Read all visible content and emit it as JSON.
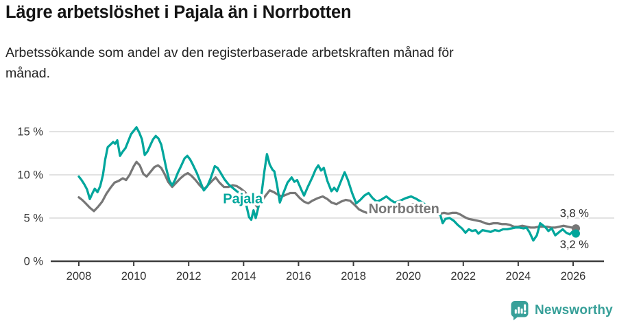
{
  "header": {
    "title": "Lägre arbetslöshet i Pajala än i Norrbotten",
    "subtitle_lines": [
      "Arbetssökande som andel av den registerbaserade arbetskraften månad för",
      "månad."
    ]
  },
  "footer": {
    "brand": "Newsworthy",
    "brand_color": "#38a099"
  },
  "colors": {
    "pajala": "#00a69c",
    "norrbotten": "#777777",
    "grid": "#d9d9d9",
    "axis": "#3c3c3c",
    "tick_text": "#333333"
  },
  "chart_data": {
    "type": "line",
    "title": "Lägre arbetslöshet i Pajala än i Norrbotten",
    "subtitle": "Arbetssökande som andel av den registerbaserade arbetskraften månad för månad.",
    "unit": "%",
    "grid": true,
    "legend_position": "inline-labels",
    "x_axis": {
      "range": [
        2007.9,
        2027.0
      ],
      "ticks": [
        2008,
        2010,
        2012,
        2014,
        2016,
        2018,
        2020,
        2022,
        2024,
        2026
      ],
      "tick_labels": [
        "2008",
        "2010",
        "2012",
        "2014",
        "2016",
        "2018",
        "2020",
        "2022",
        "2024",
        "2026"
      ]
    },
    "y_axis": {
      "range": [
        0,
        16.5
      ],
      "ticks": [
        0,
        5,
        10,
        15
      ],
      "tick_labels": [
        "0 %",
        "5 %",
        "10 %",
        "15 %"
      ]
    },
    "series": [
      {
        "name": "Norrbotten",
        "color": "#777777",
        "end_value": 3.8,
        "end_label": "3,8 %",
        "points": [
          [
            2008.0,
            7.4
          ],
          [
            2008.12,
            7.1
          ],
          [
            2008.25,
            6.7
          ],
          [
            2008.4,
            6.2
          ],
          [
            2008.55,
            5.8
          ],
          [
            2008.7,
            6.3
          ],
          [
            2008.85,
            6.9
          ],
          [
            2009.0,
            7.8
          ],
          [
            2009.15,
            8.5
          ],
          [
            2009.3,
            9.1
          ],
          [
            2009.45,
            9.3
          ],
          [
            2009.6,
            9.6
          ],
          [
            2009.72,
            9.4
          ],
          [
            2009.85,
            10.0
          ],
          [
            2010.0,
            11.0
          ],
          [
            2010.1,
            11.5
          ],
          [
            2010.22,
            11.1
          ],
          [
            2010.35,
            10.1
          ],
          [
            2010.47,
            9.8
          ],
          [
            2010.6,
            10.3
          ],
          [
            2010.75,
            10.9
          ],
          [
            2010.88,
            11.1
          ],
          [
            2011.0,
            10.8
          ],
          [
            2011.12,
            10.1
          ],
          [
            2011.25,
            9.2
          ],
          [
            2011.4,
            8.6
          ],
          [
            2011.55,
            9.1
          ],
          [
            2011.7,
            9.6
          ],
          [
            2011.85,
            10.0
          ],
          [
            2011.97,
            10.2
          ],
          [
            2012.1,
            9.9
          ],
          [
            2012.25,
            9.4
          ],
          [
            2012.4,
            8.8
          ],
          [
            2012.55,
            8.3
          ],
          [
            2012.7,
            8.8
          ],
          [
            2012.85,
            9.3
          ],
          [
            2012.98,
            9.7
          ],
          [
            2013.12,
            9.1
          ],
          [
            2013.28,
            8.6
          ],
          [
            2013.45,
            8.6
          ],
          [
            2013.6,
            8.8
          ],
          [
            2013.75,
            8.7
          ],
          [
            2013.9,
            8.4
          ],
          [
            2014.05,
            8.0
          ],
          [
            2014.2,
            7.4
          ],
          [
            2014.35,
            6.8
          ],
          [
            2014.5,
            6.3
          ],
          [
            2014.65,
            6.9
          ],
          [
            2014.8,
            7.6
          ],
          [
            2014.95,
            8.2
          ],
          [
            2015.1,
            8.0
          ],
          [
            2015.25,
            7.7
          ],
          [
            2015.4,
            7.5
          ],
          [
            2015.55,
            7.7
          ],
          [
            2015.7,
            7.9
          ],
          [
            2015.88,
            7.9
          ],
          [
            2016.05,
            7.3
          ],
          [
            2016.2,
            6.9
          ],
          [
            2016.35,
            6.7
          ],
          [
            2016.5,
            7.0
          ],
          [
            2016.7,
            7.3
          ],
          [
            2016.88,
            7.5
          ],
          [
            2017.05,
            7.2
          ],
          [
            2017.2,
            6.8
          ],
          [
            2017.38,
            6.6
          ],
          [
            2017.55,
            6.9
          ],
          [
            2017.72,
            7.1
          ],
          [
            2017.88,
            7.0
          ],
          [
            2018.05,
            6.5
          ],
          [
            2018.2,
            6.0
          ],
          [
            2018.4,
            5.7
          ],
          [
            2018.6,
            5.5
          ],
          [
            2018.8,
            5.7
          ],
          [
            2019.0,
            5.9
          ],
          [
            2019.2,
            6.1
          ],
          [
            2019.4,
            6.0
          ],
          [
            2019.6,
            6.1
          ],
          [
            2019.8,
            6.3
          ],
          [
            2020.0,
            6.5
          ],
          [
            2020.2,
            6.6
          ],
          [
            2020.4,
            6.4
          ],
          [
            2020.6,
            6.2
          ],
          [
            2020.8,
            5.9
          ],
          [
            2021.0,
            5.7
          ],
          [
            2021.17,
            5.5
          ],
          [
            2021.3,
            5.6
          ],
          [
            2021.45,
            5.5
          ],
          [
            2021.6,
            5.6
          ],
          [
            2021.75,
            5.6
          ],
          [
            2021.9,
            5.4
          ],
          [
            2022.05,
            5.1
          ],
          [
            2022.2,
            4.9
          ],
          [
            2022.35,
            4.8
          ],
          [
            2022.5,
            4.7
          ],
          [
            2022.65,
            4.6
          ],
          [
            2022.8,
            4.4
          ],
          [
            2022.95,
            4.3
          ],
          [
            2023.1,
            4.4
          ],
          [
            2023.25,
            4.4
          ],
          [
            2023.4,
            4.3
          ],
          [
            2023.55,
            4.3
          ],
          [
            2023.7,
            4.2
          ],
          [
            2023.85,
            4.0
          ],
          [
            2024.0,
            4.0
          ],
          [
            2024.15,
            4.1
          ],
          [
            2024.3,
            4.0
          ],
          [
            2024.45,
            3.9
          ],
          [
            2024.6,
            3.9
          ],
          [
            2024.75,
            4.0
          ],
          [
            2024.9,
            4.0
          ],
          [
            2025.05,
            4.0
          ],
          [
            2025.2,
            3.9
          ],
          [
            2025.35,
            3.9
          ],
          [
            2025.5,
            4.0
          ],
          [
            2025.65,
            4.1
          ],
          [
            2025.8,
            4.0
          ],
          [
            2025.95,
            3.9
          ],
          [
            2026.1,
            3.8
          ]
        ]
      },
      {
        "name": "Pajala",
        "color": "#00a69c",
        "end_value": 3.2,
        "end_label": "3,2 %",
        "points": [
          [
            2008.0,
            9.8
          ],
          [
            2008.1,
            9.4
          ],
          [
            2008.2,
            8.9
          ],
          [
            2008.3,
            8.3
          ],
          [
            2008.4,
            7.2
          ],
          [
            2008.5,
            7.9
          ],
          [
            2008.58,
            8.4
          ],
          [
            2008.68,
            8.0
          ],
          [
            2008.78,
            8.7
          ],
          [
            2008.88,
            10.0
          ],
          [
            2008.96,
            11.8
          ],
          [
            2009.05,
            13.2
          ],
          [
            2009.15,
            13.5
          ],
          [
            2009.25,
            13.8
          ],
          [
            2009.32,
            13.6
          ],
          [
            2009.4,
            14.0
          ],
          [
            2009.5,
            12.2
          ],
          [
            2009.6,
            12.7
          ],
          [
            2009.7,
            13.1
          ],
          [
            2009.8,
            13.9
          ],
          [
            2009.9,
            14.7
          ],
          [
            2010.0,
            15.1
          ],
          [
            2010.1,
            15.5
          ],
          [
            2010.2,
            14.9
          ],
          [
            2010.3,
            14.1
          ],
          [
            2010.4,
            12.3
          ],
          [
            2010.5,
            12.7
          ],
          [
            2010.6,
            13.4
          ],
          [
            2010.7,
            14.1
          ],
          [
            2010.8,
            14.5
          ],
          [
            2010.9,
            14.2
          ],
          [
            2011.0,
            13.5
          ],
          [
            2011.1,
            12.0
          ],
          [
            2011.2,
            10.5
          ],
          [
            2011.3,
            9.3
          ],
          [
            2011.4,
            8.8
          ],
          [
            2011.5,
            9.4
          ],
          [
            2011.6,
            10.2
          ],
          [
            2011.72,
            11.0
          ],
          [
            2011.85,
            11.9
          ],
          [
            2011.95,
            12.2
          ],
          [
            2012.05,
            11.8
          ],
          [
            2012.15,
            11.2
          ],
          [
            2012.3,
            10.2
          ],
          [
            2012.45,
            9.0
          ],
          [
            2012.55,
            8.2
          ],
          [
            2012.68,
            8.7
          ],
          [
            2012.8,
            9.6
          ],
          [
            2012.95,
            11.0
          ],
          [
            2013.05,
            10.8
          ],
          [
            2013.15,
            10.3
          ],
          [
            2013.3,
            9.5
          ],
          [
            2013.45,
            8.9
          ],
          [
            2013.6,
            8.5
          ],
          [
            2013.75,
            8.1
          ],
          [
            2013.9,
            7.8
          ],
          [
            2014.0,
            7.5
          ],
          [
            2014.1,
            6.5
          ],
          [
            2014.2,
            5.1
          ],
          [
            2014.28,
            4.8
          ],
          [
            2014.36,
            5.9
          ],
          [
            2014.44,
            5.0
          ],
          [
            2014.54,
            6.3
          ],
          [
            2014.66,
            8.0
          ],
          [
            2014.76,
            10.5
          ],
          [
            2014.85,
            12.4
          ],
          [
            2014.95,
            11.2
          ],
          [
            2015.05,
            10.6
          ],
          [
            2015.12,
            10.4
          ],
          [
            2015.22,
            8.8
          ],
          [
            2015.32,
            6.8
          ],
          [
            2015.45,
            7.9
          ],
          [
            2015.6,
            9.1
          ],
          [
            2015.75,
            9.7
          ],
          [
            2015.85,
            9.2
          ],
          [
            2015.95,
            9.4
          ],
          [
            2016.1,
            8.3
          ],
          [
            2016.2,
            7.6
          ],
          [
            2016.35,
            8.7
          ],
          [
            2016.5,
            9.7
          ],
          [
            2016.62,
            10.6
          ],
          [
            2016.72,
            11.1
          ],
          [
            2016.82,
            10.5
          ],
          [
            2016.92,
            10.8
          ],
          [
            2017.05,
            9.3
          ],
          [
            2017.2,
            8.1
          ],
          [
            2017.3,
            8.5
          ],
          [
            2017.4,
            8.1
          ],
          [
            2017.55,
            9.3
          ],
          [
            2017.68,
            10.3
          ],
          [
            2017.8,
            9.4
          ],
          [
            2017.95,
            7.9
          ],
          [
            2018.1,
            6.7
          ],
          [
            2018.25,
            7.1
          ],
          [
            2018.4,
            7.6
          ],
          [
            2018.55,
            7.9
          ],
          [
            2018.7,
            7.3
          ],
          [
            2018.85,
            6.9
          ],
          [
            2019.0,
            7.1
          ],
          [
            2019.2,
            7.5
          ],
          [
            2019.35,
            7.1
          ],
          [
            2019.5,
            6.8
          ],
          [
            2019.7,
            7.0
          ],
          [
            2019.9,
            7.3
          ],
          [
            2020.1,
            7.5
          ],
          [
            2020.3,
            7.2
          ],
          [
            2020.5,
            6.8
          ],
          [
            2020.7,
            6.4
          ],
          [
            2020.9,
            5.9
          ],
          [
            2021.05,
            5.5
          ],
          [
            2021.17,
            5.3
          ],
          [
            2021.25,
            4.4
          ],
          [
            2021.35,
            4.9
          ],
          [
            2021.5,
            5.0
          ],
          [
            2021.65,
            4.7
          ],
          [
            2021.8,
            4.2
          ],
          [
            2021.95,
            3.8
          ],
          [
            2022.08,
            3.3
          ],
          [
            2022.2,
            3.7
          ],
          [
            2022.32,
            3.5
          ],
          [
            2022.45,
            3.6
          ],
          [
            2022.55,
            3.2
          ],
          [
            2022.7,
            3.6
          ],
          [
            2022.85,
            3.5
          ],
          [
            2023.0,
            3.4
          ],
          [
            2023.15,
            3.6
          ],
          [
            2023.3,
            3.5
          ],
          [
            2023.45,
            3.7
          ],
          [
            2023.6,
            3.7
          ],
          [
            2023.75,
            3.8
          ],
          [
            2023.9,
            3.9
          ],
          [
            2024.05,
            3.9
          ],
          [
            2024.2,
            3.8
          ],
          [
            2024.3,
            3.9
          ],
          [
            2024.42,
            3.3
          ],
          [
            2024.55,
            2.4
          ],
          [
            2024.68,
            3.0
          ],
          [
            2024.8,
            4.4
          ],
          [
            2024.92,
            4.1
          ],
          [
            2025.0,
            3.9
          ],
          [
            2025.1,
            3.5
          ],
          [
            2025.22,
            3.8
          ],
          [
            2025.35,
            3.0
          ],
          [
            2025.5,
            3.4
          ],
          [
            2025.62,
            3.7
          ],
          [
            2025.75,
            3.3
          ],
          [
            2025.88,
            3.1
          ],
          [
            2026.0,
            3.5
          ],
          [
            2026.1,
            3.2
          ]
        ]
      }
    ],
    "annotations": [
      {
        "id": "pajala-series-label",
        "text": "Pajala",
        "x_year": 2013.25,
        "y_pct": 6.7,
        "color": "#00a69c",
        "bold": true,
        "size": 20
      },
      {
        "id": "norrbotten-series-label",
        "text": "Norrbotten",
        "x_year": 2018.55,
        "y_pct": 5.55,
        "color": "#777777",
        "bold": true,
        "size": 20
      },
      {
        "id": "norrbotten-end-value",
        "text": "3,8 %",
        "x_year": 2025.52,
        "y_pct": 5.1,
        "color": "#2b2b2b",
        "bold": false,
        "size": 16.5
      },
      {
        "id": "pajala-end-value",
        "text": "3,2 %",
        "x_year": 2025.52,
        "y_pct": 1.5,
        "color": "#2b2b2b",
        "bold": false,
        "size": 16.5
      }
    ]
  }
}
